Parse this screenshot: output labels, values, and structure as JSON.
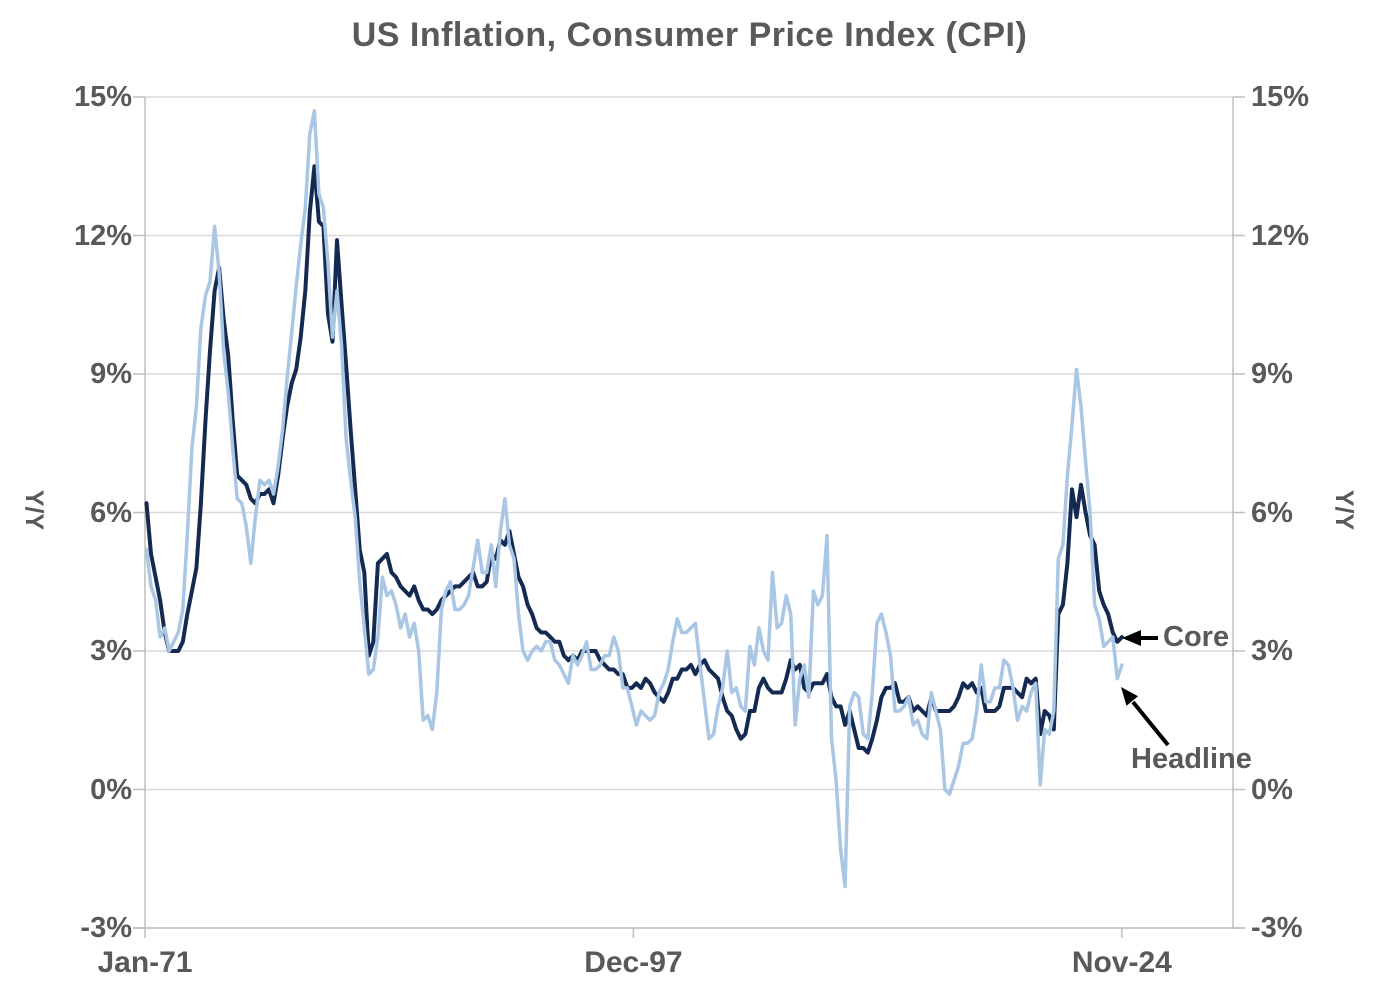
{
  "chart_data": {
    "type": "line",
    "title": "US Inflation, Consumer Price Index (CPI)",
    "ylabel_left": "Y/Y",
    "ylabel_right": "Y/Y",
    "ylim": [
      -3,
      15
    ],
    "y_ticks": [
      15,
      12,
      9,
      6,
      3,
      0,
      -3
    ],
    "y_tick_labels": [
      "15%",
      "12%",
      "9%",
      "6%",
      "3%",
      "0%",
      "-3%"
    ],
    "xlim": [
      1971.042,
      2031.0
    ],
    "x_ticks": [
      {
        "label": "Jan-71",
        "t": 1971.042
      },
      {
        "label": "Dec-97",
        "t": 1997.958
      },
      {
        "label": "Nov-24",
        "t": 2024.875
      }
    ],
    "x_start": 1971.125,
    "x_step": 0.25,
    "x_unit": "decimal-year, quarterly points Feb/May/Aug/Nov 1971-2024",
    "grid": "horizontal",
    "legend": "none",
    "annotations": [
      {
        "label": "Core",
        "series": "Core",
        "value_at_end": "3.3%"
      },
      {
        "label": "Headline",
        "series": "Headline",
        "value_at_end": "2.7%"
      }
    ],
    "colors": {
      "text": "#595959",
      "grid": "#D9D9D9",
      "axis": "#BFBFBF",
      "arrow": "#000000",
      "headline_line": "#A9C6E4",
      "core_line": "#152A52"
    },
    "series": [
      {
        "name": "Core",
        "color": "#152A52",
        "values": [
          6.2,
          5.1,
          4.6,
          4.1,
          3.4,
          3.0,
          3.0,
          3.0,
          3.2,
          3.8,
          4.3,
          4.8,
          6.2,
          8.0,
          9.5,
          10.8,
          11.3,
          10.2,
          9.4,
          8.0,
          6.8,
          6.7,
          6.6,
          6.3,
          6.2,
          6.4,
          6.4,
          6.5,
          6.2,
          6.8,
          7.6,
          8.3,
          8.8,
          9.1,
          9.8,
          10.8,
          12.5,
          13.5,
          12.3,
          12.2,
          10.3,
          9.7,
          11.9,
          10.5,
          9.2,
          7.8,
          6.5,
          5.2,
          4.7,
          2.9,
          3.2,
          4.9,
          5.0,
          5.1,
          4.7,
          4.6,
          4.4,
          4.3,
          4.2,
          4.4,
          4.1,
          3.9,
          3.9,
          3.8,
          3.9,
          4.1,
          4.2,
          4.3,
          4.4,
          4.4,
          4.5,
          4.6,
          4.7,
          4.4,
          4.4,
          4.5,
          5.1,
          5.0,
          5.4,
          5.3,
          5.6,
          5.1,
          4.6,
          4.4,
          4.0,
          3.8,
          3.5,
          3.4,
          3.4,
          3.3,
          3.2,
          3.2,
          2.9,
          2.8,
          2.9,
          2.8,
          3.0,
          3.0,
          3.0,
          3.0,
          2.8,
          2.7,
          2.6,
          2.6,
          2.5,
          2.5,
          2.2,
          2.2,
          2.3,
          2.2,
          2.4,
          2.3,
          2.1,
          2.0,
          1.9,
          2.1,
          2.4,
          2.4,
          2.6,
          2.6,
          2.7,
          2.5,
          2.7,
          2.8,
          2.6,
          2.5,
          2.4,
          2.0,
          1.7,
          1.6,
          1.3,
          1.1,
          1.2,
          1.7,
          1.7,
          2.2,
          2.4,
          2.2,
          2.1,
          2.1,
          2.1,
          2.4,
          2.8,
          2.6,
          2.7,
          2.2,
          2.1,
          2.3,
          2.3,
          2.3,
          2.5,
          2.0,
          1.8,
          1.8,
          1.4,
          1.7,
          1.3,
          0.9,
          0.9,
          0.8,
          1.1,
          1.5,
          2.0,
          2.2,
          2.2,
          2.3,
          1.9,
          1.9,
          2.0,
          1.7,
          1.8,
          1.7,
          1.6,
          2.0,
          1.7,
          1.7,
          1.7,
          1.7,
          1.8,
          2.0,
          2.3,
          2.2,
          2.3,
          2.1,
          2.2,
          1.7,
          1.7,
          1.7,
          1.8,
          2.2,
          2.2,
          2.2,
          2.1,
          2.0,
          2.4,
          2.3,
          2.4,
          1.2,
          1.7,
          1.6,
          1.3,
          3.8,
          4.0,
          4.9,
          6.5,
          5.9,
          6.6,
          6.0,
          5.5,
          5.3,
          4.3,
          4.0,
          3.8,
          3.4,
          3.2,
          3.3
        ]
      },
      {
        "name": "Headline",
        "color": "#A9C6E4",
        "values": [
          5.2,
          4.4,
          4.1,
          3.3,
          3.5,
          3.0,
          3.2,
          3.4,
          3.9,
          5.5,
          7.4,
          8.3,
          10.0,
          10.7,
          11.0,
          12.2,
          11.2,
          9.5,
          8.6,
          7.4,
          6.3,
          6.2,
          5.7,
          4.9,
          5.9,
          6.7,
          6.6,
          6.7,
          6.4,
          7.0,
          7.8,
          8.9,
          9.9,
          10.9,
          11.8,
          12.6,
          14.2,
          14.7,
          12.9,
          12.6,
          11.4,
          9.8,
          10.8,
          9.6,
          7.6,
          6.7,
          5.9,
          4.5,
          3.5,
          2.5,
          2.6,
          3.3,
          4.6,
          4.2,
          4.3,
          4.0,
          3.5,
          3.8,
          3.3,
          3.6,
          3.0,
          1.5,
          1.6,
          1.3,
          2.1,
          3.9,
          4.3,
          4.5,
          3.9,
          3.9,
          4.0,
          4.2,
          4.8,
          5.4,
          4.7,
          4.7,
          5.3,
          4.4,
          5.6,
          6.3,
          5.3,
          5.0,
          3.8,
          3.0,
          2.8,
          3.0,
          3.1,
          3.0,
          3.2,
          3.2,
          2.8,
          2.7,
          2.5,
          2.3,
          2.9,
          2.7,
          2.9,
          3.2,
          2.6,
          2.6,
          2.7,
          2.9,
          2.9,
          3.3,
          3.0,
          2.2,
          2.2,
          1.8,
          1.4,
          1.7,
          1.6,
          1.5,
          1.6,
          2.1,
          2.3,
          2.6,
          3.2,
          3.7,
          3.4,
          3.4,
          3.5,
          3.6,
          2.7,
          1.9,
          1.1,
          1.2,
          1.8,
          2.2,
          3.0,
          2.1,
          2.2,
          1.8,
          1.7,
          3.1,
          2.7,
          3.5,
          3.0,
          2.8,
          4.7,
          3.5,
          3.6,
          4.2,
          3.8,
          1.4,
          2.4,
          2.7,
          2.0,
          4.3,
          4.0,
          4.2,
          5.5,
          1.1,
          0.2,
          -1.3,
          -2.1,
          1.8,
          2.1,
          2.0,
          1.2,
          1.1,
          2.1,
          3.6,
          3.8,
          3.4,
          2.9,
          1.7,
          1.7,
          1.8,
          2.0,
          1.4,
          1.5,
          1.2,
          1.1,
          2.1,
          1.7,
          1.3,
          0.0,
          -0.1,
          0.2,
          0.5,
          1.0,
          1.0,
          1.1,
          1.7,
          2.7,
          1.9,
          1.9,
          2.2,
          2.2,
          2.8,
          2.7,
          2.2,
          1.5,
          1.8,
          1.7,
          2.1,
          2.3,
          0.1,
          1.3,
          1.2,
          1.7,
          5.0,
          5.3,
          6.8,
          7.9,
          9.1,
          8.3,
          7.1,
          6.0,
          4.0,
          3.7,
          3.1,
          3.2,
          3.3,
          2.4,
          2.7
        ]
      }
    ]
  }
}
